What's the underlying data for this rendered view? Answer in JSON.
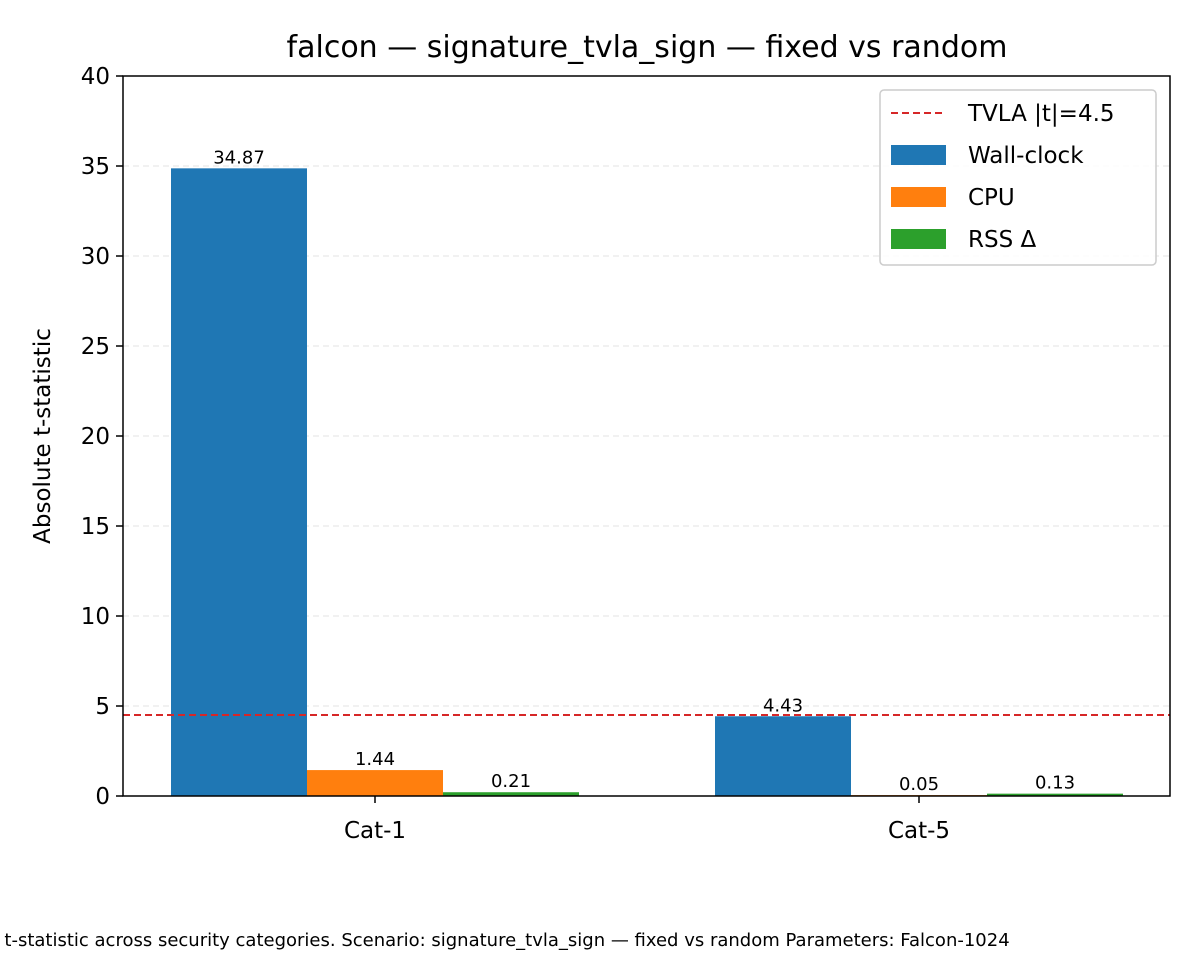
{
  "chart_data": {
    "type": "bar",
    "title": "falcon — signature_tvla_sign — fixed vs random",
    "xlabel": "",
    "ylabel": "Absolute t-statistic",
    "categories": [
      "Cat-1",
      "Cat-5"
    ],
    "series": [
      {
        "name": "Wall-clock",
        "color": "#1f77b4",
        "values": [
          34.87,
          4.43
        ],
        "labels": [
          "34.87",
          "4.43"
        ]
      },
      {
        "name": "CPU",
        "color": "#ff7f0e",
        "values": [
          1.44,
          0.05
        ],
        "labels": [
          "1.44",
          "0.05"
        ]
      },
      {
        "name": "RSS Δ",
        "color": "#2ca02c",
        "values": [
          0.21,
          0.13
        ],
        "labels": [
          "0.21",
          "0.13"
        ]
      }
    ],
    "threshold": {
      "name": "TVLA |t|=4.5",
      "value": 4.5,
      "color": "#d62728",
      "style": "dashed"
    },
    "ylim": [
      0,
      40
    ],
    "yticks": [
      0,
      5,
      10,
      15,
      20,
      25,
      30,
      35,
      40
    ],
    "grid": "y-dashed",
    "legend_position": "top-right"
  },
  "caption": "Absolute t-statistic across security categories. Scenario: signature_tvla_sign — fixed vs random Parameters: Falcon-1024"
}
